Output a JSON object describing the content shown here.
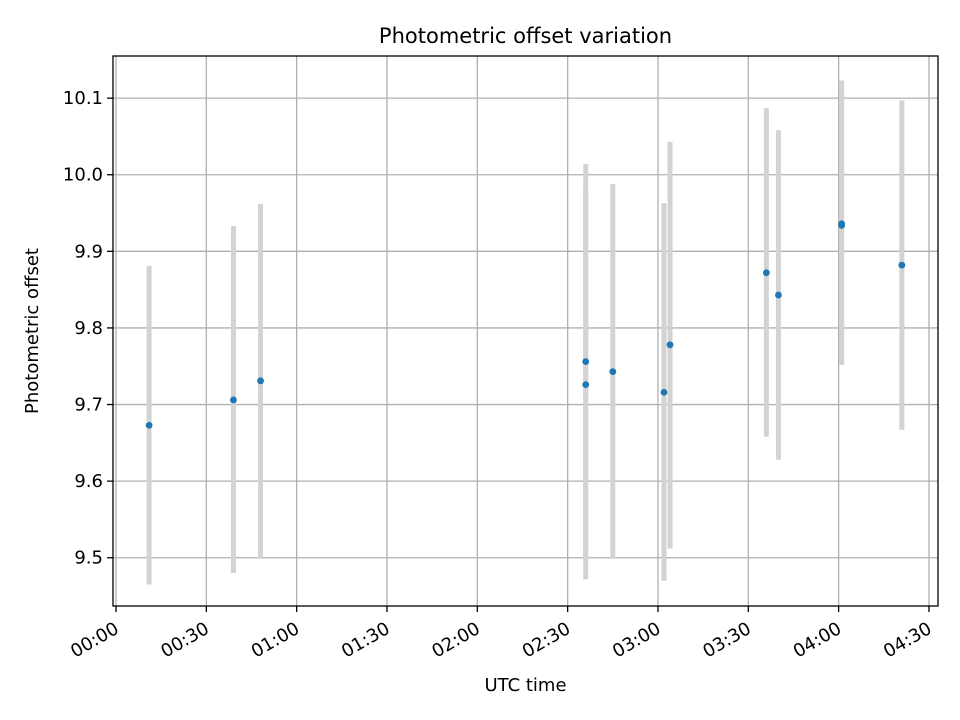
{
  "chart_data": {
    "type": "scatter",
    "title": "Photometric offset variation",
    "xlabel": "UTC time",
    "ylabel": "Photometric offset",
    "x_tick_labels": [
      "00:00",
      "00:30",
      "01:00",
      "01:30",
      "02:00",
      "02:30",
      "03:00",
      "03:30",
      "04:00",
      "04:30"
    ],
    "x_tick_values": [
      "00:00",
      "00:30",
      "01:00",
      "01:30",
      "02:00",
      "02:30",
      "03:00",
      "03:30",
      "04:00",
      "04:30"
    ],
    "y_ticks": [
      9.5,
      9.6,
      9.7,
      9.8,
      9.9,
      10.0,
      10.1
    ],
    "xlim": [
      "23:59",
      "04:33"
    ],
    "ylim": [
      9.437,
      10.155
    ],
    "grid": true,
    "colors": {
      "points": "#1f77b4",
      "error_bars": "#d3d3d3",
      "grid": "#b0b0b0"
    },
    "points": [
      {
        "x": "00:11",
        "y": 9.673,
        "ylow": 9.465,
        "yhigh": 9.881
      },
      {
        "x": "00:39",
        "y": 9.706,
        "ylow": 9.48,
        "yhigh": 9.933
      },
      {
        "x": "00:48",
        "y": 9.731,
        "ylow": 9.5,
        "yhigh": 9.962
      },
      {
        "x": "02:36",
        "y": 9.756,
        "ylow": 9.498,
        "yhigh": 10.014
      },
      {
        "x": "02:36",
        "y": 9.726,
        "ylow": 9.472,
        "yhigh": 9.98
      },
      {
        "x": "02:45",
        "y": 9.743,
        "ylow": 9.5,
        "yhigh": 9.988
      },
      {
        "x": "03:02",
        "y": 9.716,
        "ylow": 9.47,
        "yhigh": 9.963
      },
      {
        "x": "03:04",
        "y": 9.778,
        "ylow": 9.512,
        "yhigh": 10.043
      },
      {
        "x": "03:36",
        "y": 9.872,
        "ylow": 9.658,
        "yhigh": 10.087
      },
      {
        "x": "03:40",
        "y": 9.843,
        "ylow": 9.628,
        "yhigh": 10.058
      },
      {
        "x": "04:01",
        "y": 9.936,
        "ylow": 9.752,
        "yhigh": 10.123
      },
      {
        "x": "04:01",
        "y": 9.934,
        "ylow": 9.752,
        "yhigh": 10.118
      },
      {
        "x": "04:21",
        "y": 9.882,
        "ylow": 9.667,
        "yhigh": 10.097
      }
    ]
  }
}
